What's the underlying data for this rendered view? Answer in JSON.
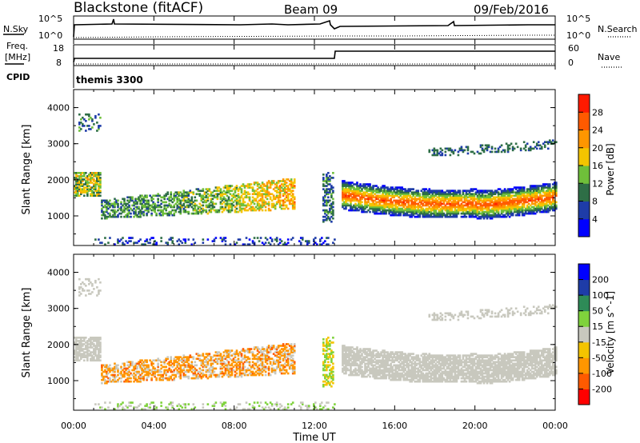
{
  "header": {
    "station": "Blackstone (fitACF)",
    "beam": "Beam 09",
    "date": "09/Feb/2016"
  },
  "strip_labels": {
    "nsky": "N.Sky",
    "nsky_top": "10^5",
    "nsky_bottom": "10^0",
    "nsearch": "N.Search",
    "nsearch_top": "10^5",
    "nsearch_bottom": "10^0",
    "freq": "Freq.",
    "freq_unit": "[MHz]",
    "freq_top": "18",
    "freq_bottom": "8",
    "nave": "Nave",
    "nave_top": "60",
    "nave_bottom": "0",
    "cpid": "CPID",
    "cpid_value": "themis 3300"
  },
  "colors": {
    "power": [
      "#0000ff",
      "#1e3ca8",
      "#2e6e46",
      "#6fbf3a",
      "#f4c400",
      "#ff9600",
      "#ff5a00",
      "#ff1a00"
    ],
    "velocity": [
      "#ff0000",
      "#ff5a00",
      "#ff9600",
      "#f4c400",
      "#c8c8be",
      "#7fd23c",
      "#2e8b57",
      "#1e3ca8",
      "#0000ff"
    ]
  },
  "chart_data": [
    {
      "type": "heatmap",
      "name": "power",
      "xlabel": "Time UT",
      "ylabel": "Slant Range [km]",
      "colorbar_label": "Power [dB]",
      "colorbar_ticks": [
        "28",
        "24",
        "20",
        "16",
        "12",
        "8",
        "4"
      ],
      "x_ticks": [
        "00:00",
        "04:00",
        "08:00",
        "12:00",
        "16:00",
        "20:00",
        "00:00"
      ],
      "y_ticks": [
        "4000",
        "3000",
        "2000",
        "1000"
      ],
      "xlim_hours": [
        0,
        24
      ],
      "ylim_km": [
        180,
        4500
      ]
    },
    {
      "type": "heatmap",
      "name": "velocity",
      "xlabel": "Time UT",
      "ylabel": "Slant Range [km]",
      "colorbar_label": "Velocity [m s^-1]",
      "colorbar_ticks": [
        "200",
        "100",
        "50",
        "15",
        "-15",
        "-50",
        "-100",
        "-200"
      ],
      "x_ticks": [
        "00:00",
        "04:00",
        "08:00",
        "12:00",
        "16:00",
        "20:00",
        "00:00"
      ],
      "y_ticks": [
        "4000",
        "3000",
        "2000",
        "1000"
      ],
      "xlim_hours": [
        0,
        24
      ],
      "ylim_km": [
        180,
        4500
      ]
    }
  ]
}
